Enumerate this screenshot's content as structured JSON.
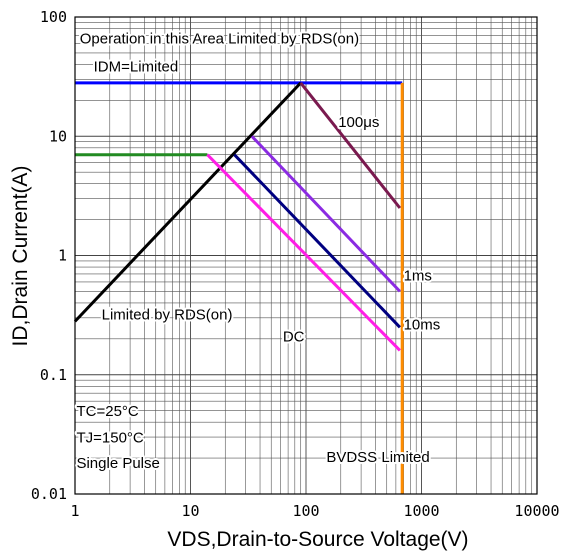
{
  "chart_data": {
    "type": "line",
    "title": "",
    "xlabel": "VDS,Drain-to-Source Voltage(V)",
    "ylabel": "ID,Drain Current(A)",
    "xscale": "log",
    "yscale": "log",
    "xlim": [
      1,
      10000
    ],
    "ylim": [
      0.01,
      100
    ],
    "grid": true,
    "x_ticks": [
      "1",
      "10",
      "100",
      "1000",
      "10000"
    ],
    "y_ticks": [
      "100",
      "10",
      "1",
      "0.1",
      "0.01"
    ],
    "series": [
      {
        "color": "#0000ff",
        "x": [
          1,
          680
        ],
        "y": [
          28,
          28
        ]
      },
      {
        "color": "#ff8c00",
        "x": [
          680,
          680
        ],
        "y": [
          0.01,
          28
        ]
      },
      {
        "color": "#000000",
        "x": [
          1,
          90
        ],
        "y": [
          0.28,
          28
        ]
      },
      {
        "color": "#228b22",
        "x": [
          1,
          14
        ],
        "y": [
          7,
          7
        ]
      },
      {
        "color": "#7a1a4f",
        "x": [
          90,
          650
        ],
        "y": [
          28,
          2.5
        ]
      },
      {
        "color": "#8b2be2",
        "x": [
          34,
          650
        ],
        "y": [
          10,
          0.5
        ]
      },
      {
        "color": "#000080",
        "x": [
          24,
          650
        ],
        "y": [
          7,
          0.25
        ]
      },
      {
        "color": "#ff1ee6",
        "x": [
          14,
          650
        ],
        "y": [
          7,
          0.16
        ]
      }
    ],
    "annotations": [
      {
        "id": "rds_area",
        "text": "Operation in this Area Limited by RDS(on)",
        "x": 1.1,
        "y": 60,
        "anchor": "start"
      },
      {
        "id": "idm",
        "text": "IDM=Limited",
        "x": 1.45,
        "y": 35,
        "anchor": "start"
      },
      {
        "id": "us100",
        "text": "100μs",
        "x": 190,
        "y": 12,
        "anchor": "start"
      },
      {
        "id": "ms1",
        "text": "1ms",
        "x": 700,
        "y": 0.62,
        "anchor": "start"
      },
      {
        "id": "ms10",
        "text": "10ms",
        "x": 700,
        "y": 0.24,
        "anchor": "start"
      },
      {
        "id": "rds_limited",
        "text": "Limited by RDS(on)",
        "x": 1.7,
        "y": 0.29,
        "anchor": "start"
      },
      {
        "id": "dc",
        "text": "DC",
        "x": 63,
        "y": 0.19,
        "anchor": "start"
      },
      {
        "id": "tc",
        "text": "TC=25°C",
        "x": 1.03,
        "y": 0.045,
        "anchor": "start"
      },
      {
        "id": "tj",
        "text": "TJ=150°C",
        "x": 1.03,
        "y": 0.027,
        "anchor": "start"
      },
      {
        "id": "pulse",
        "text": "Single Pulse",
        "x": 1.03,
        "y": 0.0165,
        "anchor": "start"
      },
      {
        "id": "bvdss",
        "text": "BVDSS Limited",
        "x": 150,
        "y": 0.0185,
        "anchor": "start"
      }
    ]
  }
}
